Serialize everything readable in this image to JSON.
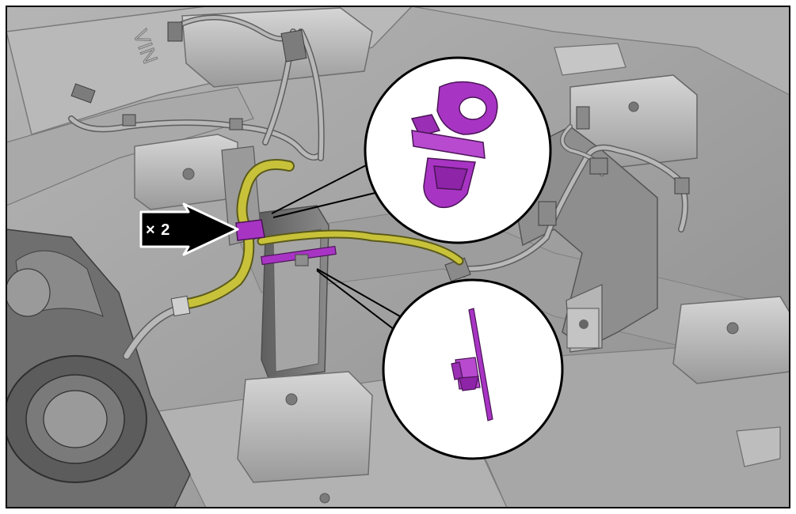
{
  "figure": {
    "quantity_label": "× 2",
    "colors": {
      "background_panel": "#9a9a9a",
      "panel_light": "#c9c9c9",
      "panel_mid": "#a8a8a8",
      "panel_dark": "#6e6e6e",
      "harness_highlight": "#c8c23a",
      "clip_highlight": "#a834c4",
      "callout_fill": "#ffffff",
      "arrow_fill": "#000000",
      "frame_border": "#000000"
    },
    "icons": {
      "arrow": "right-arrow-icon",
      "clip_detail": "push-pin-clip-icon",
      "edge_clip_detail": "edge-clip-icon"
    }
  }
}
